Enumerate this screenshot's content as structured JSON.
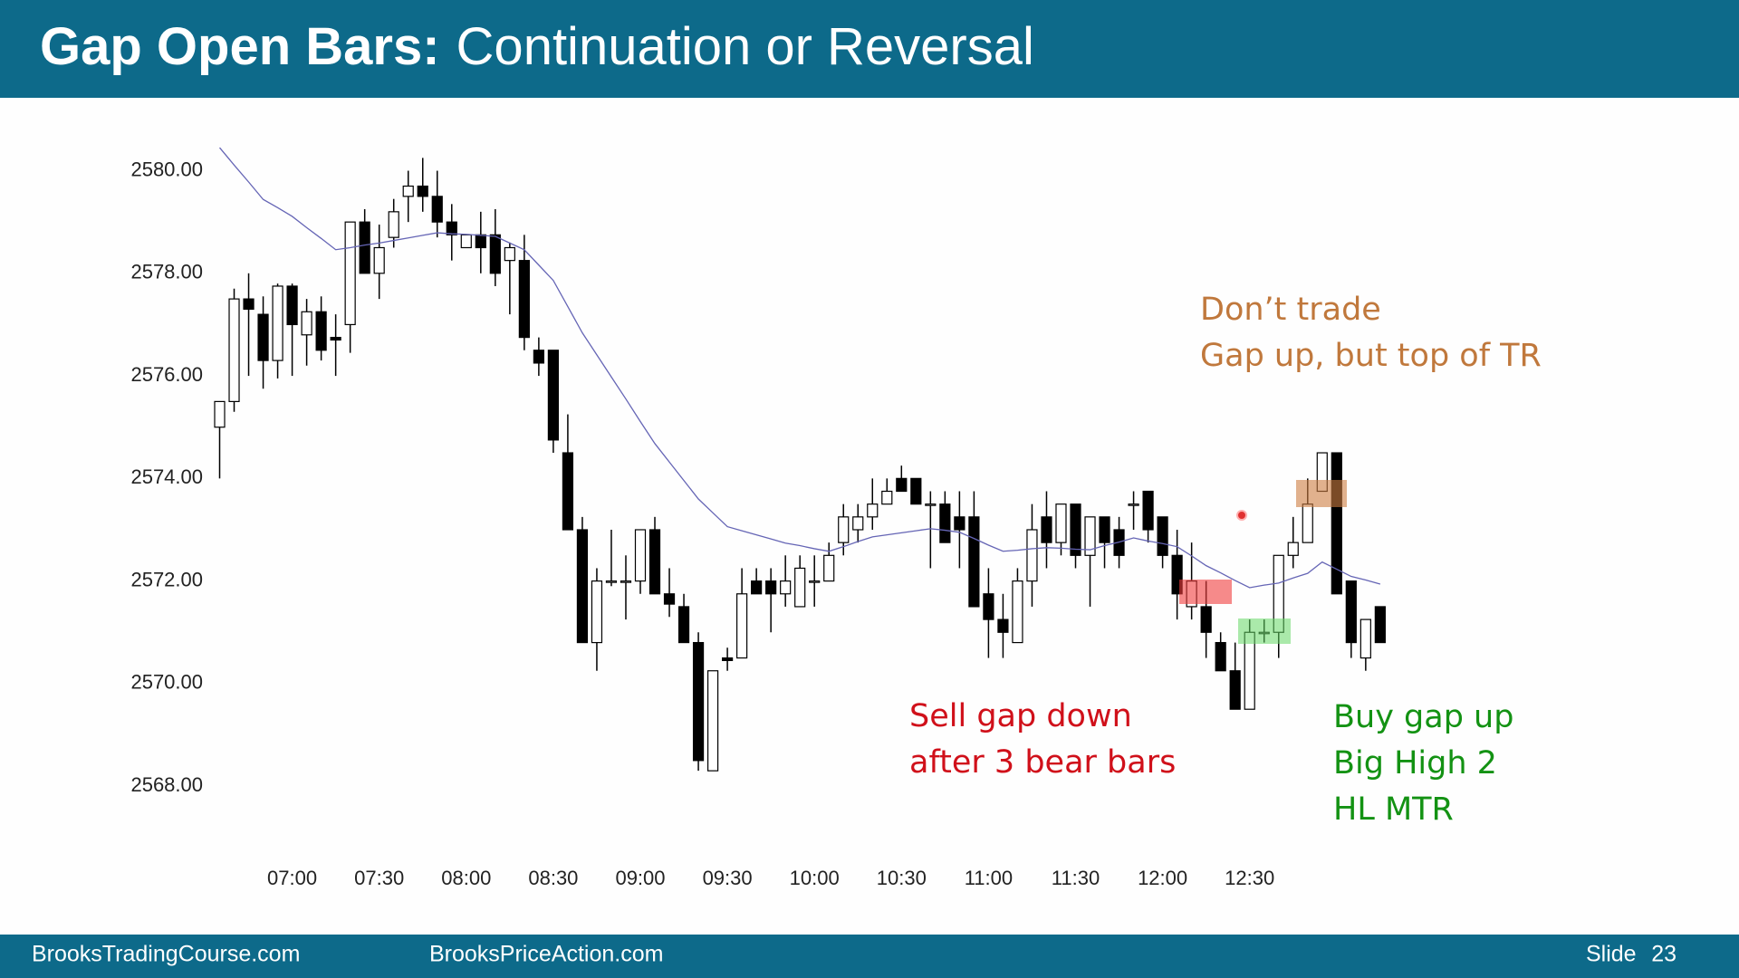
{
  "slide": {
    "title_lead": "Gap Open Bars:",
    "title_rest": "Continuation or Reversal",
    "footer_left": "BrooksTradingCourse.com",
    "footer_mid": "BrooksPriceAction.com",
    "slide_label": "Slide",
    "slide_number": "23"
  },
  "chart_data": {
    "type": "candlestick",
    "categories": [
      null,
      null,
      null,
      null,
      null,
      "07:00",
      null,
      null,
      null,
      null,
      null,
      "07:30",
      null,
      null,
      null,
      null,
      null,
      "08:00",
      null,
      null,
      null,
      null,
      null,
      "08:30",
      null,
      null,
      null,
      null,
      null,
      "09:00",
      null,
      null,
      null,
      null,
      null,
      "09:30",
      null,
      null,
      null,
      null,
      null,
      "10:00",
      null,
      null,
      null,
      null,
      null,
      "10:30",
      null,
      null,
      null,
      null,
      null,
      "11:00",
      null,
      null,
      null,
      null,
      null,
      "11:30",
      null,
      null,
      null,
      null,
      null,
      "12:00",
      null,
      null,
      null,
      null,
      null,
      "12:30",
      null,
      null,
      null,
      null,
      null,
      null,
      null,
      null,
      null
    ],
    "open": [
      2575.0,
      2575.5,
      2577.5,
      2577.2,
      2576.3,
      2577.75,
      2576.8,
      2577.25,
      2576.75,
      2577.0,
      2579.0,
      2578.0,
      2578.7,
      2579.5,
      2579.7,
      2579.5,
      2579.0,
      2578.5,
      2578.75,
      2578.75,
      2578.25,
      2578.25,
      2576.5,
      2576.5,
      2574.5,
      2573.0,
      2570.8,
      2572.0,
      2572.0,
      2572.0,
      2573.0,
      2571.75,
      2571.5,
      2570.8,
      2568.3,
      2570.5,
      2570.5,
      2572.0,
      2572.0,
      2571.75,
      2571.5,
      2572.0,
      2572.0,
      2572.75,
      2573.0,
      2573.25,
      2573.5,
      2574.0,
      2574.0,
      2573.5,
      2573.5,
      2573.25,
      2573.25,
      2571.75,
      2571.25,
      2570.8,
      2572.0,
      2573.25,
      2572.75,
      2573.5,
      2572.5,
      2573.25,
      2573.0,
      2573.5,
      2573.75,
      2573.25,
      2572.5,
      2571.5,
      2571.5,
      2570.8,
      2570.25,
      2569.5,
      2571.0,
      2571.0,
      2572.5,
      2572.75,
      2573.75,
      2574.5,
      2572.0,
      2570.5,
      2571.5
    ],
    "high": [
      2575.5,
      2577.7,
      2578.0,
      2577.55,
      2577.8,
      2577.8,
      2577.5,
      2577.55,
      2577.2,
      2579.0,
      2579.25,
      2578.95,
      2579.45,
      2580.0,
      2580.25,
      2580.0,
      2579.35,
      2578.75,
      2579.2,
      2579.25,
      2578.6,
      2578.75,
      2576.75,
      2576.5,
      2575.25,
      2573.25,
      2572.25,
      2573.0,
      2572.5,
      2573.0,
      2573.25,
      2572.25,
      2571.75,
      2571.0,
      2570.25,
      2570.7,
      2572.25,
      2572.25,
      2572.25,
      2572.5,
      2572.5,
      2572.5,
      2572.75,
      2573.5,
      2573.5,
      2574.0,
      2574.0,
      2574.25,
      2574.0,
      2573.75,
      2573.75,
      2573.75,
      2573.75,
      2572.25,
      2571.75,
      2572.25,
      2573.5,
      2573.75,
      2573.5,
      2573.5,
      2573.25,
      2573.25,
      2573.25,
      2573.75,
      2573.75,
      2573.25,
      2573.0,
      2572.75,
      2572.0,
      2571.0,
      2570.8,
      2571.25,
      2571.25,
      2572.5,
      2573.25,
      2574.0,
      2574.5,
      2574.5,
      2572.0,
      2571.25,
      2571.5
    ],
    "low": [
      2574.0,
      2575.3,
      2576.0,
      2575.75,
      2575.95,
      2576.0,
      2576.2,
      2576.3,
      2576.0,
      2576.45,
      2578.0,
      2577.5,
      2578.5,
      2579.0,
      2579.2,
      2578.7,
      2578.25,
      2578.5,
      2578.0,
      2577.75,
      2577.2,
      2576.5,
      2576.0,
      2574.5,
      2573.0,
      2570.8,
      2570.25,
      2571.9,
      2571.25,
      2571.75,
      2571.75,
      2571.3,
      2570.8,
      2568.3,
      2568.3,
      2570.25,
      2570.5,
      2571.75,
      2571.0,
      2571.5,
      2571.5,
      2571.5,
      2572.0,
      2572.5,
      2572.75,
      2573.0,
      2573.5,
      2573.75,
      2573.5,
      2572.25,
      2572.75,
      2572.25,
      2571.5,
      2570.5,
      2570.5,
      2570.8,
      2571.5,
      2572.25,
      2572.5,
      2572.25,
      2571.5,
      2572.25,
      2572.25,
      2573.0,
      2572.75,
      2572.25,
      2571.25,
      2571.25,
      2570.5,
      2570.25,
      2569.5,
      2569.5,
      2570.8,
      2570.5,
      2572.25,
      2572.75,
      2573.75,
      2571.75,
      2570.5,
      2570.25,
      2570.8
    ],
    "close": [
      2575.5,
      2577.5,
      2577.3,
      2576.3,
      2577.75,
      2577.0,
      2577.25,
      2576.5,
      2576.7,
      2579.0,
      2578.0,
      2578.5,
      2579.2,
      2579.7,
      2579.5,
      2579.0,
      2578.75,
      2578.75,
      2578.5,
      2578.0,
      2578.5,
      2576.75,
      2576.25,
      2574.75,
      2573.0,
      2570.8,
      2572.0,
      2572.0,
      2572.0,
      2573.0,
      2571.75,
      2571.55,
      2570.8,
      2568.5,
      2570.25,
      2570.45,
      2571.75,
      2571.75,
      2571.75,
      2572.0,
      2572.25,
      2572.0,
      2572.5,
      2573.25,
      2573.25,
      2573.5,
      2573.75,
      2573.75,
      2573.5,
      2573.5,
      2572.75,
      2573.0,
      2571.5,
      2571.25,
      2571.0,
      2572.0,
      2573.0,
      2572.75,
      2573.5,
      2572.5,
      2573.25,
      2572.75,
      2572.5,
      2573.5,
      2573.0,
      2572.5,
      2571.75,
      2572.0,
      2571.0,
      2570.25,
      2569.5,
      2571.0,
      2571.0,
      2572.5,
      2572.75,
      2573.5,
      2574.5,
      2571.75,
      2570.8,
      2571.25,
      2570.8
    ],
    "up_color": "#ffffff",
    "down_color": "#000000",
    "moving_average": {
      "color": "#6565b5",
      "values": [
        2580.45,
        2580.11,
        2579.78,
        2579.44,
        2579.28,
        2579.11,
        2578.89,
        2578.68,
        2578.46,
        2578.5,
        2578.55,
        2578.59,
        2578.64,
        2578.69,
        2578.74,
        2578.79,
        2578.77,
        2578.76,
        2578.74,
        2578.72,
        2578.59,
        2578.46,
        2578.16,
        2577.86,
        2577.35,
        2576.84,
        2576.41,
        2575.98,
        2575.55,
        2575.11,
        2574.68,
        2574.32,
        2573.96,
        2573.6,
        2573.33,
        2573.06,
        2572.98,
        2572.9,
        2572.82,
        2572.74,
        2572.69,
        2572.63,
        2572.58,
        2572.67,
        2572.77,
        2572.86,
        2572.9,
        2572.94,
        2572.98,
        2573.02,
        2572.99,
        2572.95,
        2572.83,
        2572.7,
        2572.58,
        2572.6,
        2572.63,
        2572.65,
        2572.64,
        2572.62,
        2572.61,
        2572.69,
        2572.76,
        2572.84,
        2572.78,
        2572.73,
        2572.67,
        2572.49,
        2572.3,
        2572.16,
        2572.01,
        2571.87,
        2571.92,
        2571.96,
        2572.06,
        2572.15,
        2572.37,
        2572.23,
        2572.09,
        2572.02,
        2571.94
      ]
    },
    "ylim": [
      2567,
      2581
    ],
    "yticks": [
      {
        "value": 2568,
        "label": "2568.00"
      },
      {
        "value": 2570,
        "label": "2570.00"
      },
      {
        "value": 2572,
        "label": "2572.00"
      },
      {
        "value": 2574,
        "label": "2574.00"
      },
      {
        "value": 2576,
        "label": "2576.00"
      },
      {
        "value": 2578,
        "label": "2578.00"
      },
      {
        "value": 2580,
        "label": "2580.00"
      }
    ],
    "grid": false,
    "annotations": [
      {
        "lines": [
          "Don’t trade",
          "Gap up, but top of TR"
        ],
        "color": "#c0783c"
      },
      {
        "lines": [
          "Sell gap down",
          "after 3 bear bars"
        ],
        "color": "#d0101a"
      },
      {
        "lines": [
          "Buy gap up",
          "Big High 2",
          "HL MTR"
        ],
        "color": "#139213"
      }
    ]
  }
}
